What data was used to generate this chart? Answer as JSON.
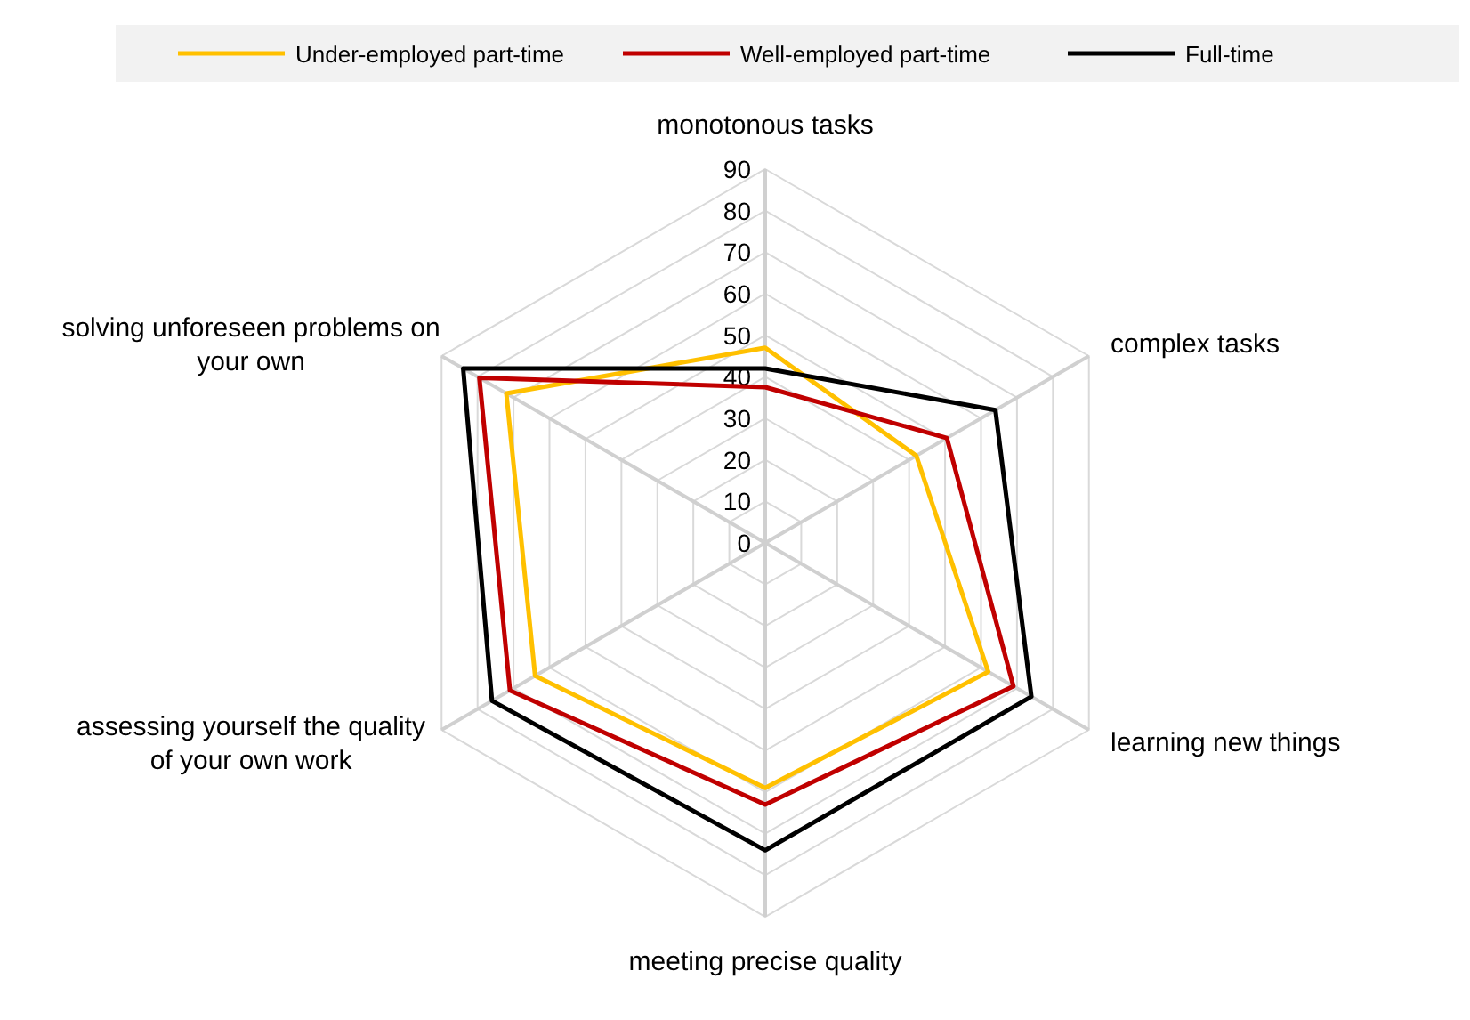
{
  "chart_data": {
    "type": "radar",
    "categories": [
      "monotonous tasks",
      "complex tasks",
      "learning new things",
      "meeting precise quality",
      "assessing yourself the quality of your own work",
      "solving unforeseen problems on your own"
    ],
    "ylim": [
      0,
      90
    ],
    "yticks": [
      0,
      10,
      20,
      30,
      40,
      50,
      60,
      70,
      80,
      90
    ],
    "grid": true,
    "legend": "top",
    "marker": "none",
    "line_style": "solid",
    "series": [
      {
        "name": "Under-employed part-time",
        "color": "#ffc000",
        "values": [
          47,
          42,
          62,
          59,
          64,
          72
        ]
      },
      {
        "name": "Well-employed part-time",
        "color": "#c00000",
        "values": [
          37.5,
          50.5,
          69,
          63,
          71,
          79.5
        ]
      },
      {
        "name": "Full-time",
        "color": "#000000",
        "values": [
          42,
          64,
          74,
          74,
          76,
          84
        ]
      }
    ]
  }
}
